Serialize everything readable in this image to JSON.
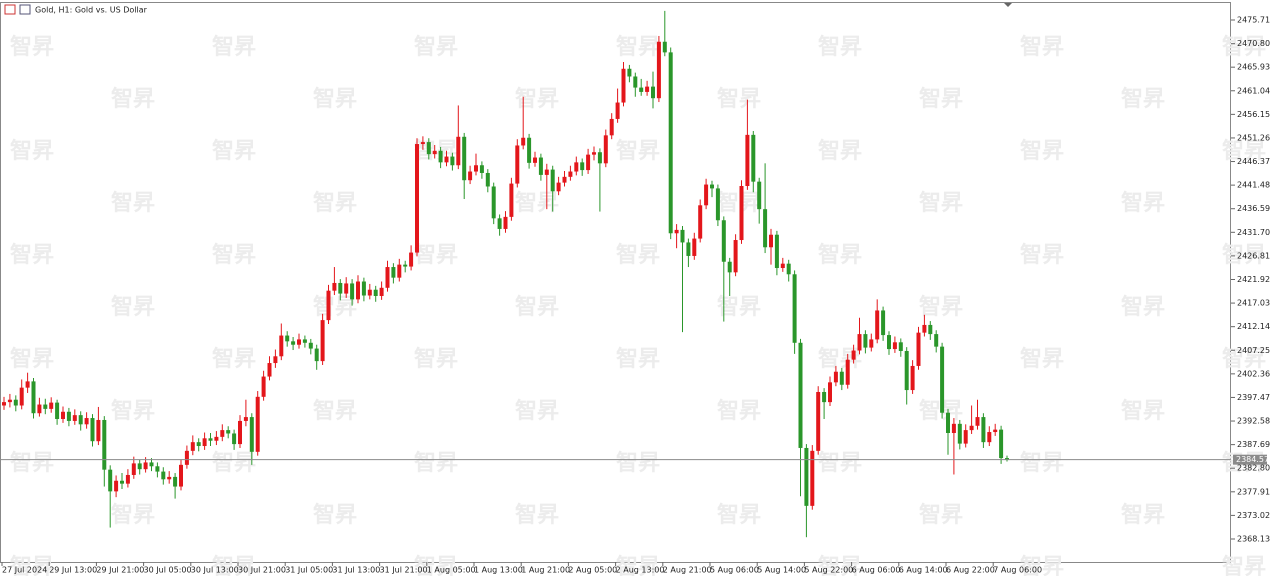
{
  "chart_data": {
    "type": "candlestick",
    "title": "Gold, H1:  Gold vs. US Dollar",
    "watermark": "智昇",
    "up_color": "#e3161b",
    "down_color": "#2a962a",
    "price_line": 2384.57,
    "ylim": [
      2363.36,
      2479.44
    ],
    "yticks": [
      2475.71,
      {
        "value": 2470.8,
        "label": "2470.80"
      },
      2465.93,
      2461.04,
      2456.15,
      2451.26,
      2446.37,
      2441.48,
      2436.59,
      {
        "value": 2431.7,
        "label": "2431.70"
      },
      2426.81,
      2421.92,
      2417.03,
      2412.14,
      2407.25,
      2402.36,
      2397.47,
      2392.58,
      2387.69,
      {
        "value": 2382.8,
        "label": "2382.80"
      },
      2377.91,
      2373.02,
      2368.13
    ],
    "categories": [
      "27 Jul 2024",
      null,
      null,
      null,
      null,
      null,
      null,
      null,
      "29 Jul 13:00",
      null,
      null,
      null,
      null,
      null,
      null,
      null,
      "29 Jul 21:00",
      null,
      null,
      null,
      null,
      null,
      null,
      null,
      "30 Jul 05:00",
      null,
      null,
      null,
      null,
      null,
      null,
      null,
      "30 Jul 13:00",
      null,
      null,
      null,
      null,
      null,
      null,
      null,
      "30 Jul 21:00",
      null,
      null,
      null,
      null,
      null,
      null,
      null,
      "31 Jul 05:00",
      null,
      null,
      null,
      null,
      null,
      null,
      null,
      "31 Jul 13:00",
      null,
      null,
      null,
      null,
      null,
      null,
      null,
      "31 Jul 21:00",
      null,
      null,
      null,
      null,
      null,
      null,
      null,
      "1 Aug 05:00",
      null,
      null,
      null,
      null,
      null,
      null,
      null,
      "1 Aug 13:00",
      null,
      null,
      null,
      null,
      null,
      null,
      null,
      "1 Aug 21:00",
      null,
      null,
      null,
      null,
      null,
      null,
      null,
      "2 Aug 05:00",
      null,
      null,
      null,
      null,
      null,
      null,
      null,
      "2 Aug 13:00",
      null,
      null,
      null,
      null,
      null,
      null,
      null,
      "2 Aug 21:00",
      null,
      null,
      null,
      null,
      null,
      null,
      null,
      "5 Aug 06:00",
      null,
      null,
      null,
      null,
      null,
      null,
      null,
      "5 Aug 14:00",
      null,
      null,
      null,
      null,
      null,
      null,
      null,
      "5 Aug 22:00",
      null,
      null,
      null,
      null,
      null,
      null,
      null,
      "6 Aug 06:00",
      null,
      null,
      null,
      null,
      null,
      null,
      null,
      "6 Aug 14:00",
      null,
      null,
      null,
      null,
      null,
      null,
      null,
      "6 Aug 22:00",
      null,
      null,
      null,
      null,
      null,
      null,
      null,
      "7 Aug 06:00",
      null,
      null
    ],
    "ohlc": [
      [
        2395.8,
        2397.6,
        2394.9,
        2396.5
      ],
      [
        2396.5,
        2398.2,
        2395.4,
        2397.0
      ],
      [
        2397.0,
        2397.9,
        2394.6,
        2395.8
      ],
      [
        2395.8,
        2401.2,
        2395.0,
        2399.5
      ],
      [
        2399.5,
        2402.6,
        2398.4,
        2400.8
      ],
      [
        2400.8,
        2401.5,
        2393.1,
        2394.2
      ],
      [
        2394.2,
        2397.4,
        2393.5,
        2396.0
      ],
      [
        2396.0,
        2397.2,
        2394.0,
        2395.1
      ],
      [
        2395.1,
        2397.5,
        2394.3,
        2396.4
      ],
      [
        2396.4,
        2397.0,
        2391.8,
        2393.0
      ],
      [
        2393.0,
        2395.6,
        2392.2,
        2394.5
      ],
      [
        2394.5,
        2395.3,
        2391.5,
        2392.6
      ],
      [
        2392.6,
        2395.0,
        2391.8,
        2393.8
      ],
      [
        2393.8,
        2394.6,
        2390.6,
        2391.9
      ],
      [
        2391.9,
        2394.4,
        2391.0,
        2393.2
      ],
      [
        2393.2,
        2394.0,
        2387.3,
        2388.4
      ],
      [
        2388.4,
        2395.5,
        2387.6,
        2392.8
      ],
      [
        2392.8,
        2393.6,
        2379.0,
        2382.5
      ],
      [
        2382.5,
        2383.4,
        2370.5,
        2378.0
      ],
      [
        2378.0,
        2381.3,
        2376.8,
        2380.2
      ],
      [
        2380.2,
        2381.8,
        2378.5,
        2379.6
      ],
      [
        2379.6,
        2382.6,
        2378.8,
        2381.4
      ],
      [
        2381.4,
        2385.2,
        2380.6,
        2383.8
      ],
      [
        2383.8,
        2384.6,
        2381.5,
        2382.6
      ],
      [
        2382.6,
        2385.1,
        2381.9,
        2384.0
      ],
      [
        2384.0,
        2384.9,
        2382.2,
        2383.2
      ],
      [
        2383.2,
        2384.0,
        2380.9,
        2382.1
      ],
      [
        2382.1,
        2383.0,
        2379.4,
        2380.5
      ],
      [
        2380.5,
        2382.2,
        2379.6,
        2381.0
      ],
      [
        2381.0,
        2381.8,
        2376.5,
        2379.0
      ],
      [
        2379.0,
        2384.6,
        2378.2,
        2383.5
      ],
      [
        2383.5,
        2387.5,
        2382.7,
        2386.4
      ],
      [
        2386.4,
        2389.6,
        2385.5,
        2388.2
      ],
      [
        2388.2,
        2389.0,
        2386.3,
        2387.4
      ],
      [
        2387.4,
        2390.2,
        2386.6,
        2389.0
      ],
      [
        2389.0,
        2390.1,
        2387.4,
        2388.5
      ],
      [
        2388.5,
        2390.5,
        2387.6,
        2389.3
      ],
      [
        2389.3,
        2391.9,
        2388.4,
        2390.7
      ],
      [
        2390.7,
        2391.5,
        2389.0,
        2390.0
      ],
      [
        2390.0,
        2390.8,
        2386.6,
        2387.8
      ],
      [
        2387.8,
        2393.8,
        2387.0,
        2392.6
      ],
      [
        2392.6,
        2397.0,
        2391.5,
        2393.4
      ],
      [
        2393.4,
        2394.2,
        2383.5,
        2386.2
      ],
      [
        2386.2,
        2398.8,
        2385.4,
        2397.6
      ],
      [
        2397.6,
        2403.0,
        2396.8,
        2401.8
      ],
      [
        2401.8,
        2406.0,
        2401.0,
        2404.6
      ],
      [
        2404.6,
        2407.4,
        2403.6,
        2406.0
      ],
      [
        2406.0,
        2412.8,
        2405.2,
        2410.3
      ],
      [
        2410.3,
        2411.2,
        2408.0,
        2409.1
      ],
      [
        2409.1,
        2410.0,
        2407.3,
        2408.4
      ],
      [
        2408.4,
        2410.7,
        2407.6,
        2409.5
      ],
      [
        2409.5,
        2410.3,
        2407.8,
        2408.8
      ],
      [
        2408.8,
        2409.6,
        2406.4,
        2407.6
      ],
      [
        2407.6,
        2408.4,
        2403.2,
        2405.0
      ],
      [
        2405.0,
        2414.8,
        2404.2,
        2413.5
      ],
      [
        2413.5,
        2420.8,
        2412.7,
        2419.6
      ],
      [
        2419.6,
        2424.5,
        2418.7,
        2421.2
      ],
      [
        2421.2,
        2422.0,
        2417.6,
        2419.0
      ],
      [
        2419.0,
        2422.4,
        2418.1,
        2421.1
      ],
      [
        2421.1,
        2422.0,
        2416.5,
        2417.8
      ],
      [
        2417.8,
        2422.8,
        2417.0,
        2421.5
      ],
      [
        2421.5,
        2422.3,
        2417.4,
        2418.6
      ],
      [
        2418.6,
        2421.0,
        2417.8,
        2419.8
      ],
      [
        2419.8,
        2420.6,
        2417.3,
        2418.5
      ],
      [
        2418.5,
        2421.5,
        2417.7,
        2420.2
      ],
      [
        2420.2,
        2425.8,
        2419.4,
        2424.5
      ],
      [
        2424.5,
        2425.3,
        2421.1,
        2422.3
      ],
      [
        2422.3,
        2426.2,
        2421.5,
        2425.0
      ],
      [
        2425.0,
        2425.8,
        2423.4,
        2424.6
      ],
      [
        2424.6,
        2429.0,
        2423.8,
        2427.5
      ],
      [
        2427.5,
        2451.2,
        2426.7,
        2450.0
      ],
      [
        2450.0,
        2451.6,
        2448.8,
        2450.4
      ],
      [
        2450.4,
        2451.2,
        2446.8,
        2447.9
      ],
      [
        2447.9,
        2449.8,
        2447.0,
        2448.6
      ],
      [
        2448.6,
        2449.4,
        2445.0,
        2446.2
      ],
      [
        2446.2,
        2448.6,
        2445.4,
        2447.4
      ],
      [
        2447.4,
        2448.2,
        2444.5,
        2445.6
      ],
      [
        2445.6,
        2458.0,
        2444.8,
        2451.5
      ],
      [
        2451.5,
        2452.3,
        2438.6,
        2442.5
      ],
      [
        2442.5,
        2445.5,
        2441.7,
        2444.3
      ],
      [
        2444.3,
        2448.0,
        2443.5,
        2445.6
      ],
      [
        2445.6,
        2446.4,
        2442.8,
        2444.0
      ],
      [
        2444.0,
        2444.8,
        2440.0,
        2441.2
      ],
      [
        2441.2,
        2442.0,
        2433.4,
        2434.6
      ],
      [
        2434.6,
        2435.4,
        2431.0,
        2432.4
      ],
      [
        2432.4,
        2436.1,
        2431.6,
        2434.9
      ],
      [
        2434.9,
        2443.0,
        2434.1,
        2441.8
      ],
      [
        2441.8,
        2451.0,
        2441.0,
        2449.7
      ],
      [
        2449.7,
        2459.8,
        2448.9,
        2451.3
      ],
      [
        2451.3,
        2452.1,
        2444.9,
        2446.1
      ],
      [
        2446.1,
        2448.4,
        2445.3,
        2447.2
      ],
      [
        2447.2,
        2448.0,
        2442.4,
        2443.6
      ],
      [
        2443.6,
        2445.9,
        2436.5,
        2444.7
      ],
      [
        2444.7,
        2445.5,
        2436.0,
        2440.2
      ],
      [
        2440.2,
        2443.2,
        2439.4,
        2442.0
      ],
      [
        2442.0,
        2444.4,
        2441.2,
        2443.2
      ],
      [
        2443.2,
        2445.5,
        2442.4,
        2444.3
      ],
      [
        2444.3,
        2447.4,
        2443.5,
        2446.2
      ],
      [
        2446.2,
        2447.0,
        2443.4,
        2444.6
      ],
      [
        2444.6,
        2449.0,
        2443.8,
        2447.8
      ],
      [
        2447.8,
        2449.5,
        2446.6,
        2448.3
      ],
      [
        2448.3,
        2449.1,
        2436.0,
        2446.0
      ],
      [
        2446.0,
        2453.0,
        2445.2,
        2451.8
      ],
      [
        2451.8,
        2456.4,
        2451.0,
        2455.2
      ],
      [
        2455.2,
        2461.5,
        2454.4,
        2458.6
      ],
      [
        2458.6,
        2467.0,
        2457.8,
        2465.6
      ],
      [
        2465.6,
        2466.4,
        2462.8,
        2464.0
      ],
      [
        2464.0,
        2464.8,
        2459.8,
        2461.7
      ],
      [
        2461.7,
        2463.5,
        2460.0,
        2460.8
      ],
      [
        2460.8,
        2463.1,
        2460.0,
        2461.9
      ],
      [
        2461.9,
        2465.0,
        2457.4,
        2459.5
      ],
      [
        2459.5,
        2472.4,
        2458.7,
        2471.2
      ],
      [
        2471.2,
        2477.6,
        2468.2,
        2469.0
      ],
      [
        2469.0,
        2470.0,
        2430.3,
        2431.5
      ],
      [
        2431.5,
        2433.4,
        2428.4,
        2432.2
      ],
      [
        2432.2,
        2433.0,
        2411.0,
        2429.6
      ],
      [
        2429.6,
        2430.4,
        2424.5,
        2426.8
      ],
      [
        2426.8,
        2431.6,
        2426.0,
        2430.4
      ],
      [
        2430.4,
        2438.5,
        2429.6,
        2437.3
      ],
      [
        2437.3,
        2442.8,
        2436.5,
        2441.6
      ],
      [
        2441.6,
        2442.4,
        2439.0,
        2440.8
      ],
      [
        2440.8,
        2441.6,
        2433.0,
        2434.2
      ],
      [
        2434.2,
        2435.0,
        2413.2,
        2425.6
      ],
      [
        2425.6,
        2426.4,
        2418.5,
        2423.4
      ],
      [
        2423.4,
        2431.3,
        2422.6,
        2430.1
      ],
      [
        2430.1,
        2442.5,
        2429.3,
        2441.3
      ],
      [
        2441.3,
        2459.2,
        2440.5,
        2451.9
      ],
      [
        2451.9,
        2452.7,
        2440.0,
        2442.2
      ],
      [
        2442.2,
        2443.0,
        2433.5,
        2436.5
      ],
      [
        2436.5,
        2446.0,
        2427.4,
        2428.6
      ],
      [
        2428.6,
        2432.4,
        2425.0,
        2431.2
      ],
      [
        2431.2,
        2432.0,
        2422.8,
        2424.3
      ],
      [
        2424.3,
        2426.4,
        2423.5,
        2425.2
      ],
      [
        2425.2,
        2426.0,
        2421.5,
        2423.0
      ],
      [
        2423.0,
        2423.8,
        2406.5,
        2408.8
      ],
      [
        2408.8,
        2409.6,
        2377.0,
        2387.0
      ],
      [
        2387.0,
        2387.8,
        2368.5,
        2375.0
      ],
      [
        2375.0,
        2387.6,
        2374.2,
        2386.4
      ],
      [
        2386.4,
        2399.8,
        2385.6,
        2398.6
      ],
      [
        2398.6,
        2399.4,
        2393.0,
        2396.5
      ],
      [
        2396.5,
        2401.8,
        2395.7,
        2400.6
      ],
      [
        2400.6,
        2404.0,
        2399.8,
        2402.8
      ],
      [
        2402.8,
        2403.6,
        2399.0,
        2400.1
      ],
      [
        2400.1,
        2406.5,
        2399.3,
        2405.3
      ],
      [
        2405.3,
        2408.4,
        2404.5,
        2407.2
      ],
      [
        2407.2,
        2414.0,
        2406.4,
        2410.6
      ],
      [
        2410.6,
        2411.4,
        2406.6,
        2407.8
      ],
      [
        2407.8,
        2410.7,
        2407.0,
        2409.5
      ],
      [
        2409.5,
        2417.8,
        2408.7,
        2415.5
      ],
      [
        2415.5,
        2416.3,
        2409.2,
        2410.4
      ],
      [
        2410.4,
        2411.2,
        2406.3,
        2407.5
      ],
      [
        2407.5,
        2410.1,
        2406.7,
        2408.9
      ],
      [
        2408.9,
        2409.7,
        2405.9,
        2407.1
      ],
      [
        2407.1,
        2407.9,
        2396.0,
        2399.0
      ],
      [
        2399.0,
        2405.2,
        2398.2,
        2404.0
      ],
      [
        2404.0,
        2412.1,
        2403.2,
        2410.9
      ],
      [
        2410.9,
        2414.6,
        2410.1,
        2412.5
      ],
      [
        2412.5,
        2413.3,
        2409.4,
        2410.6
      ],
      [
        2410.6,
        2411.4,
        2406.8,
        2408.0
      ],
      [
        2408.0,
        2408.8,
        2393.1,
        2394.3
      ],
      [
        2394.3,
        2395.1,
        2385.6,
        2390.1
      ],
      [
        2390.1,
        2393.2,
        2381.5,
        2392.0
      ],
      [
        2392.0,
        2392.8,
        2386.7,
        2387.9
      ],
      [
        2387.9,
        2391.9,
        2387.1,
        2390.7
      ],
      [
        2390.7,
        2395.8,
        2389.9,
        2391.6
      ],
      [
        2391.6,
        2397.0,
        2390.8,
        2393.4
      ],
      [
        2393.4,
        2394.2,
        2387.0,
        2388.2
      ],
      [
        2388.2,
        2391.5,
        2387.4,
        2390.3
      ],
      [
        2390.3,
        2392.0,
        2389.5,
        2390.8
      ],
      [
        2390.8,
        2391.6,
        2383.7,
        2384.9
      ],
      [
        2384.9,
        2385.4,
        2384.2,
        2384.6
      ]
    ]
  }
}
